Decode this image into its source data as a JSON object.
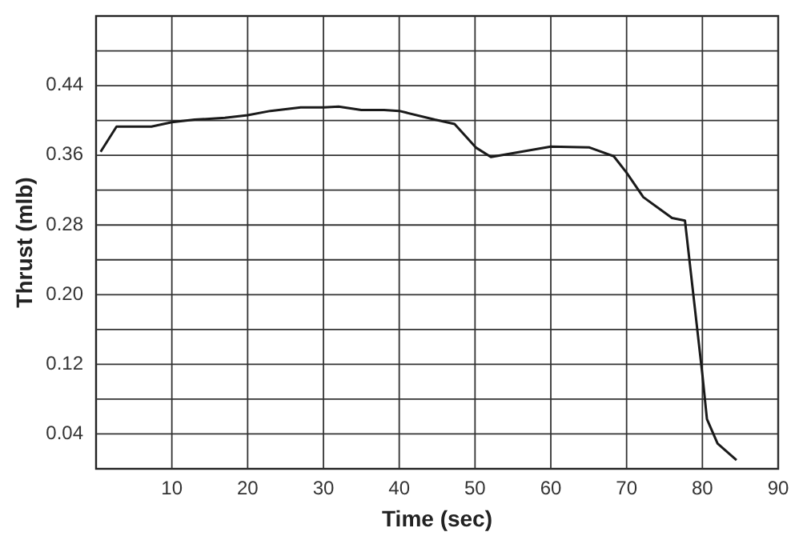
{
  "chart_data": {
    "type": "line",
    "xlabel": "Time (sec)",
    "ylabel": "Thrust (mlb)",
    "xlim": [
      0,
      90
    ],
    "xticks": [
      10,
      20,
      30,
      40,
      50,
      60,
      70,
      80,
      90
    ],
    "ylim": [
      0,
      0.52
    ],
    "yticks": [
      {
        "value": 0.04,
        "label": "0.04"
      },
      {
        "value": 0.08,
        "label": null
      },
      {
        "value": 0.12,
        "label": "0.12"
      },
      {
        "value": 0.16,
        "label": null
      },
      {
        "value": 0.2,
        "label": "0.20"
      },
      {
        "value": 0.24,
        "label": null
      },
      {
        "value": 0.28,
        "label": "0.28"
      },
      {
        "value": 0.32,
        "label": null
      },
      {
        "value": 0.36,
        "label": "0.36"
      },
      {
        "value": 0.4,
        "label": null
      },
      {
        "value": 0.44,
        "label": "0.44"
      },
      {
        "value": 0.48,
        "label": null
      }
    ],
    "grid": true,
    "marker": "none",
    "line_style": "solid",
    "series": [
      {
        "color": "#1a1a1a",
        "x": [
          0.6,
          2.7,
          7.3,
          10,
          13,
          17,
          20,
          23,
          27,
          30,
          32,
          35,
          38,
          40,
          44.7,
          47.3,
          50.1,
          52.1,
          60,
          65.1,
          68.3,
          70,
          72.2,
          76,
          77.7,
          80,
          80.6,
          82,
          84.5
        ],
        "values": [
          0.364,
          0.393,
          0.393,
          0.398,
          0.401,
          0.403,
          0.406,
          0.411,
          0.415,
          0.415,
          0.416,
          0.412,
          0.412,
          0.411,
          0.401,
          0.396,
          0.369,
          0.358,
          0.37,
          0.369,
          0.359,
          0.34,
          0.312,
          0.288,
          0.285,
          0.108,
          0.057,
          0.029,
          0.01
        ]
      }
    ]
  }
}
